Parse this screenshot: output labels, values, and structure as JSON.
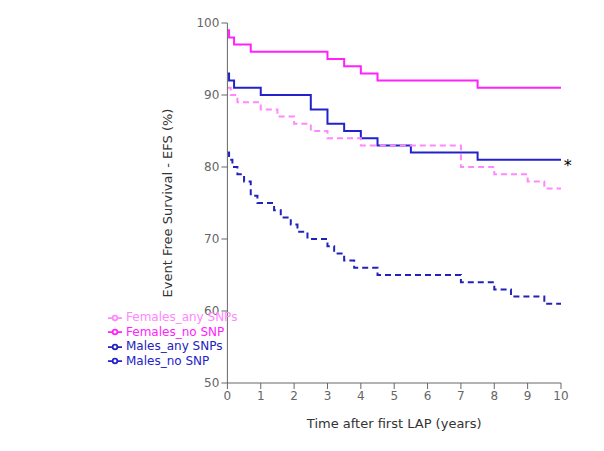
{
  "chart_data": {
    "type": "step",
    "title": "",
    "xlabel": "Time after first LAP (years)",
    "ylabel": "Event Free Survival - EFS (%)",
    "xlim": [
      0,
      10
    ],
    "ylim": [
      50,
      100
    ],
    "xticks": [
      0,
      1,
      2,
      3,
      4,
      5,
      6,
      7,
      8,
      9,
      10
    ],
    "yticks": [
      50,
      60,
      70,
      80,
      90,
      100
    ],
    "grid": false,
    "legend": "lower left",
    "series": [
      {
        "name": "Females_no SNP",
        "color": "#ff22ff",
        "line_style": "solid",
        "x": [
          0,
          0.05,
          0.2,
          0.4,
          0.7,
          1.0,
          2.0,
          3.0,
          3.5,
          4.0,
          4.5,
          5.0,
          5.5,
          6.5,
          7.5,
          8.0,
          10.0
        ],
        "values": [
          99,
          98,
          97,
          97,
          96,
          96,
          96,
          95,
          94,
          93,
          92,
          92,
          92,
          92,
          91,
          91,
          91
        ]
      },
      {
        "name": "Males_no SNP",
        "color": "#2222cc",
        "line_style": "solid",
        "x": [
          0,
          0.05,
          0.2,
          0.5,
          0.8,
          1.0,
          1.5,
          2.5,
          3.0,
          3.5,
          4.0,
          4.5,
          5.0,
          5.5,
          6.0,
          6.5,
          7.5,
          8.0,
          10.0
        ],
        "values": [
          93,
          92,
          91,
          91,
          91,
          90,
          90,
          88,
          86,
          85,
          84,
          83,
          83,
          82,
          82,
          82,
          81,
          81,
          81
        ]
      },
      {
        "name": "Females_any SNPs",
        "color": "#ff88ff",
        "line_style": "dashed",
        "x": [
          0,
          0.1,
          0.3,
          0.6,
          0.8,
          1.0,
          1.5,
          2.0,
          2.5,
          3.0,
          3.5,
          4.0,
          4.5,
          5.0,
          6.5,
          7.0,
          7.5,
          8.0,
          8.5,
          9.0,
          9.5,
          10.0
        ],
        "values": [
          91,
          90,
          89,
          89,
          89,
          88,
          87,
          86,
          85,
          84,
          84,
          83,
          83,
          83,
          83,
          80,
          80,
          79,
          79,
          78,
          77,
          77
        ]
      },
      {
        "name": "Males_any SNPs",
        "color": "#2222bb",
        "line_style": "dashed",
        "x": [
          0,
          0.05,
          0.15,
          0.3,
          0.5,
          0.7,
          0.9,
          1.1,
          1.4,
          1.6,
          1.9,
          2.1,
          2.4,
          2.7,
          3.0,
          3.2,
          3.5,
          3.8,
          4.0,
          4.5,
          5.0,
          5.5,
          6.0,
          6.5,
          7.0,
          7.5,
          8.0,
          8.5,
          9.0,
          9.5,
          10.0
        ],
        "values": [
          82,
          81,
          80,
          79,
          78,
          76,
          75,
          75,
          74,
          73,
          72,
          71,
          70,
          70,
          69,
          68,
          67,
          66,
          66,
          65,
          65,
          65,
          65,
          65,
          64,
          64,
          63,
          62,
          62,
          61,
          61
        ]
      }
    ],
    "annotations": [
      {
        "text": "*",
        "x": 10.08,
        "y": 80.2
      }
    ]
  }
}
